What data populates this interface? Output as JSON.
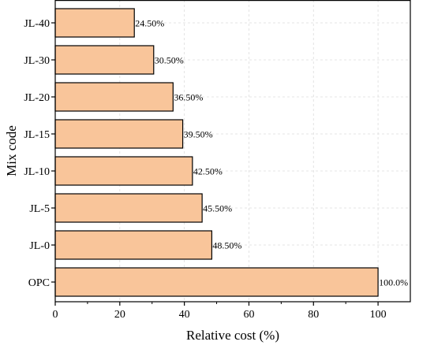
{
  "chart_data": {
    "type": "bar",
    "orientation": "horizontal",
    "categories": [
      "JL-40",
      "JL-30",
      "JL-20",
      "JL-15",
      "JL-10",
      "JL-5",
      "JL-0",
      "OPC"
    ],
    "values": [
      24.5,
      30.5,
      36.5,
      39.5,
      42.5,
      45.5,
      48.5,
      100.0
    ],
    "data_labels": [
      "24.50%",
      "30.50%",
      "36.50%",
      "39.50%",
      "42.50%",
      "45.50%",
      "48.50%",
      "100.0%"
    ],
    "xlabel": "Relative cost (%)",
    "ylabel": "Mix code",
    "xlim": [
      0,
      110
    ],
    "xticks": [
      "0",
      "20",
      "40",
      "60",
      "80",
      "100"
    ],
    "xtick_values": [
      0,
      20,
      40,
      60,
      80,
      100
    ],
    "bar_color": "#F9C59A",
    "grid": "dashed vertical and horizontal, light gray",
    "legend": "none"
  }
}
